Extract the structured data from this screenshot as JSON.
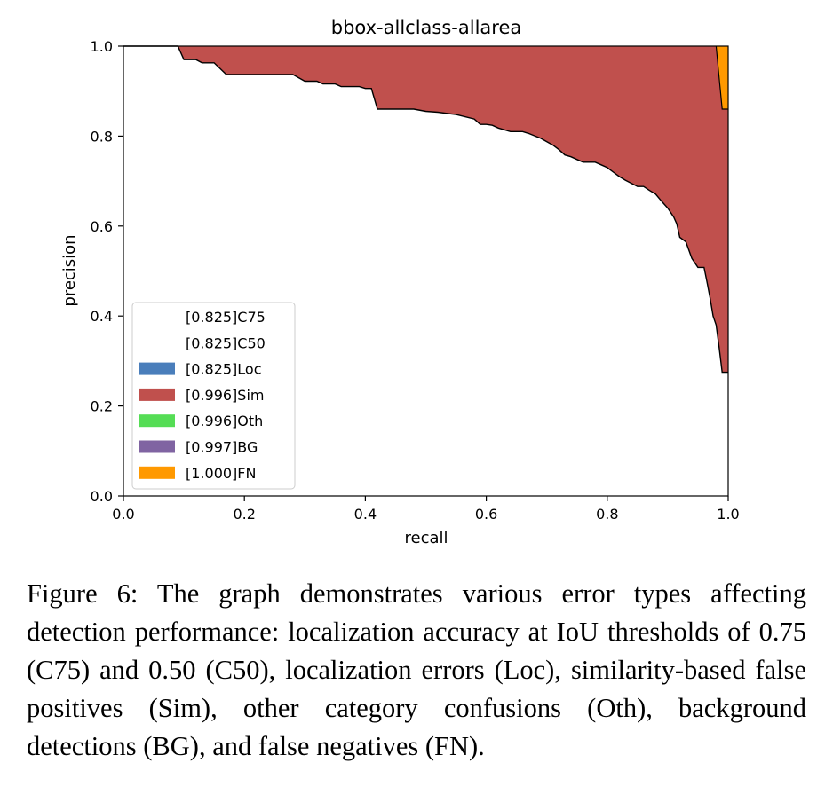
{
  "chart_data": {
    "type": "area",
    "title": "bbox-allclass-allarea",
    "xlabel": "recall",
    "ylabel": "precision",
    "xlim": [
      0,
      1
    ],
    "ylim": [
      0,
      1
    ],
    "x_ticks": [
      "0.0",
      "0.2",
      "0.4",
      "0.6",
      "0.8",
      "1.0"
    ],
    "y_ticks": [
      "0.0",
      "0.2",
      "0.4",
      "0.6",
      "0.8",
      "1.0"
    ],
    "grid": false,
    "legend_position": "lower-left",
    "series": [
      {
        "name": "[0.825]C75",
        "color": "#ffffff",
        "points": []
      },
      {
        "name": "[0.825]C50",
        "color": "#ffffff",
        "points": []
      },
      {
        "name": "[0.825]Loc",
        "color": "#4a7ebb",
        "points": []
      },
      {
        "name": "[0.996]Sim",
        "color": "#c0504d",
        "points": [
          [
            0.0,
            1.0
          ],
          [
            0.09,
            1.0
          ],
          [
            0.1,
            0.97
          ],
          [
            0.12,
            0.97
          ],
          [
            0.13,
            0.963
          ],
          [
            0.15,
            0.963
          ],
          [
            0.17,
            0.937
          ],
          [
            0.28,
            0.937
          ],
          [
            0.3,
            0.922
          ],
          [
            0.32,
            0.922
          ],
          [
            0.33,
            0.916
          ],
          [
            0.35,
            0.916
          ],
          [
            0.36,
            0.91
          ],
          [
            0.39,
            0.91
          ],
          [
            0.4,
            0.906
          ],
          [
            0.41,
            0.906
          ],
          [
            0.42,
            0.86
          ],
          [
            0.48,
            0.86
          ],
          [
            0.5,
            0.855
          ],
          [
            0.52,
            0.853
          ],
          [
            0.55,
            0.848
          ],
          [
            0.58,
            0.838
          ],
          [
            0.59,
            0.826
          ],
          [
            0.6,
            0.826
          ],
          [
            0.61,
            0.824
          ],
          [
            0.62,
            0.818
          ],
          [
            0.63,
            0.814
          ],
          [
            0.64,
            0.81
          ],
          [
            0.66,
            0.81
          ],
          [
            0.67,
            0.806
          ],
          [
            0.69,
            0.795
          ],
          [
            0.71,
            0.78
          ],
          [
            0.72,
            0.77
          ],
          [
            0.73,
            0.758
          ],
          [
            0.74,
            0.754
          ],
          [
            0.75,
            0.748
          ],
          [
            0.76,
            0.742
          ],
          [
            0.78,
            0.742
          ],
          [
            0.79,
            0.736
          ],
          [
            0.8,
            0.73
          ],
          [
            0.81,
            0.72
          ],
          [
            0.82,
            0.71
          ],
          [
            0.83,
            0.702
          ],
          [
            0.84,
            0.695
          ],
          [
            0.85,
            0.688
          ],
          [
            0.86,
            0.688
          ],
          [
            0.87,
            0.679
          ],
          [
            0.88,
            0.671
          ],
          [
            0.89,
            0.655
          ],
          [
            0.9,
            0.64
          ],
          [
            0.91,
            0.62
          ],
          [
            0.915,
            0.605
          ],
          [
            0.92,
            0.575
          ],
          [
            0.93,
            0.565
          ],
          [
            0.94,
            0.528
          ],
          [
            0.95,
            0.508
          ],
          [
            0.96,
            0.508
          ],
          [
            0.965,
            0.475
          ],
          [
            0.97,
            0.44
          ],
          [
            0.975,
            0.4
          ],
          [
            0.98,
            0.38
          ],
          [
            0.985,
            0.33
          ],
          [
            0.99,
            0.275
          ],
          [
            1.0,
            0.275
          ]
        ]
      },
      {
        "name": "[0.996]Oth",
        "color": "#55dd55",
        "points": []
      },
      {
        "name": "[0.997]BG",
        "color": "#8064a2",
        "points": []
      },
      {
        "name": "[1.000]FN",
        "color": "#ff9900",
        "points": [
          [
            0.98,
            1.0
          ],
          [
            0.99,
            0.86
          ],
          [
            1.0,
            0.86
          ]
        ]
      }
    ]
  },
  "caption": "Figure 6: The graph demonstrates various error types affecting detection performance: localization accuracy at IoU thresholds of 0.75 (C75) and 0.50 (C50), localization errors (Loc), similarity-based false positives (Sim), other category confu­sions (Oth), background detections (BG), and false negatives (FN)."
}
